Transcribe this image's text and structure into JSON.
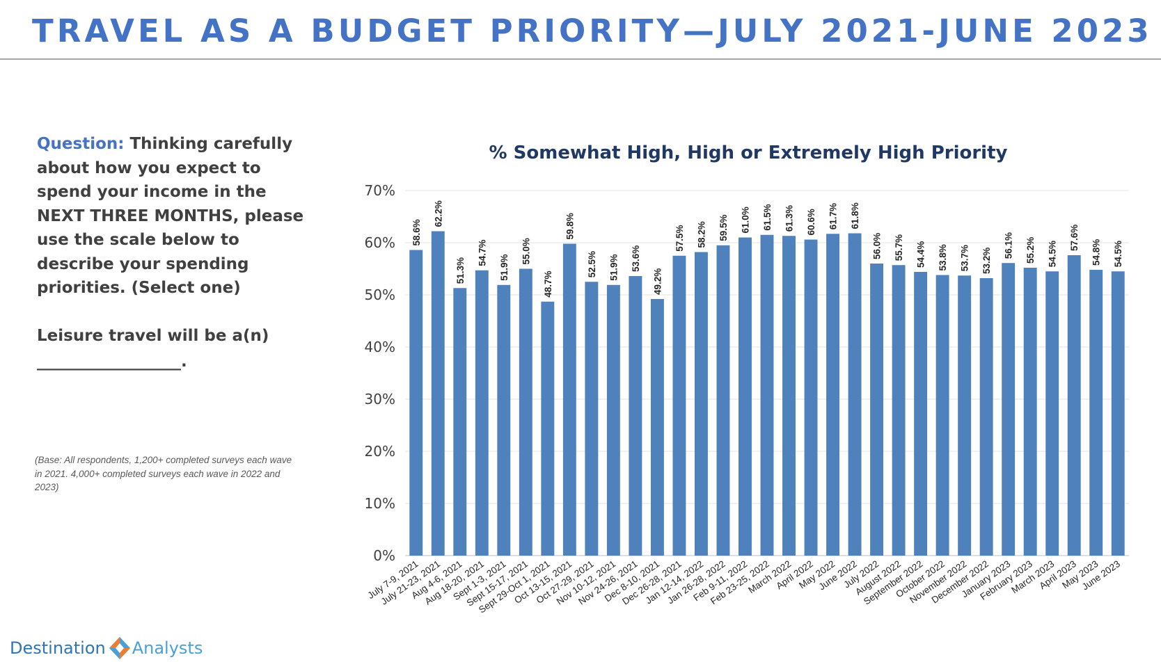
{
  "page": {
    "title": "TRAVEL AS A BUDGET PRIORITY—JULY 2021-JUNE 2023"
  },
  "question": {
    "label": "Question:",
    "text": "Thinking carefully about how you expect to spend your income in the NEXT THREE MONTHS, please use the scale below to describe your spending priorities. (Select one)",
    "leisure_line": "Leisure travel will be a(n)",
    "blank_line": "__________________."
  },
  "base_note": "(Base: All respondents, 1,200+ completed surveys each wave in 2021. 4,000+ completed surveys each wave in 2022 and 2023)",
  "logo": {
    "word1": "Destination",
    "word2": "Analysts",
    "colors": {
      "primary": "#2E75B6",
      "accent_orange": "#ED7D31",
      "accent_blue": "#4A9FD5"
    }
  },
  "colors": {
    "title": "#4472C4",
    "bar": "#4F81BD",
    "chart_title": "#1F3864",
    "text": "#404040"
  },
  "chart_data": {
    "type": "bar",
    "title": "% Somewhat High, High or Extremely High Priority",
    "xlabel": "",
    "ylabel": "",
    "ylim": [
      0,
      70
    ],
    "yticks": [
      0,
      10,
      20,
      30,
      40,
      50,
      60,
      70
    ],
    "ytick_labels": [
      "0%",
      "10%",
      "20%",
      "30%",
      "40%",
      "50%",
      "60%",
      "70%"
    ],
    "grid": true,
    "legend": "none",
    "categories": [
      "July 7-9, 2021",
      "July 21-23, 2021",
      "Aug 4-6, 2021",
      "Aug 18-20, 2021",
      "Sept 1-3, 2021",
      "Sept 15-17, 2021",
      "Sept 29-Oct 1, 2021",
      "Oct 13-15, 2021",
      "Oct 27-29, 2021",
      "Nov 10-12, 2021",
      "Nov 24-26, 2021",
      "Dec 8-10, 2021",
      "Dec 26-28, 2021",
      "Jan 12-14, 2022",
      "Jan 26-28, 2022",
      "Feb 9-11, 2022",
      "Feb 23-25, 2022",
      "March 2022",
      "April 2022",
      "May 2022",
      "June 2022",
      "July 2022",
      "August 2022",
      "September 2022",
      "October 2022",
      "November 2022",
      "December 2022",
      "January 2023",
      "February 2023",
      "March 2023",
      "April 2023",
      "May 2023",
      "June 2023"
    ],
    "values": [
      58.6,
      62.2,
      51.3,
      54.7,
      51.9,
      55.0,
      48.7,
      59.8,
      52.5,
      51.9,
      53.6,
      49.2,
      57.5,
      58.2,
      59.5,
      61.0,
      61.5,
      61.3,
      60.6,
      61.7,
      61.8,
      56.0,
      55.7,
      54.4,
      53.8,
      53.7,
      53.2,
      56.1,
      55.2,
      54.5,
      57.6,
      54.8,
      54.5
    ],
    "data_labels": [
      "58.6%",
      "62.2%",
      "51.3%",
      "54.7%",
      "51.9%",
      "55.0%",
      "48.7%",
      "59.8%",
      "52.5%",
      "51.9%",
      "53.6%",
      "49.2%",
      "57.5%",
      "58.2%",
      "59.5%",
      "61.0%",
      "61.5%",
      "61.3%",
      "60.6%",
      "61.7%",
      "61.8%",
      "56.0%",
      "55.7%",
      "54.4%",
      "53.8%",
      "53.7%",
      "53.2%",
      "56.1%",
      "55.2%",
      "54.5%",
      "57.6%",
      "54.8%",
      "54.5%"
    ]
  }
}
